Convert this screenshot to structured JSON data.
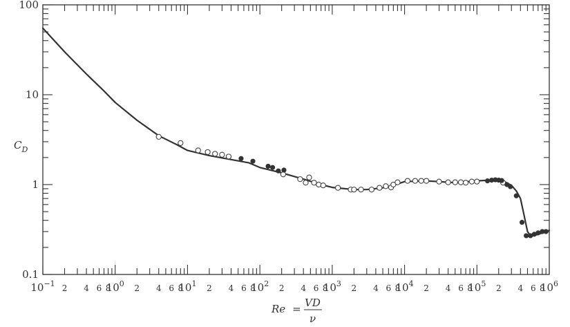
{
  "chart_data": {
    "type": "scatter",
    "xscale": "log",
    "yscale": "log",
    "xlim": [
      0.1,
      1000000
    ],
    "ylim": [
      0.1,
      100
    ],
    "xlabel": {
      "lhs": "Re",
      "eq": "=",
      "num": "VD",
      "den": "ν"
    },
    "ylabel": {
      "main": "C",
      "sub": "D"
    },
    "y_ticks": [
      {
        "value": 100,
        "label": "100"
      },
      {
        "value": 10,
        "label": "10"
      },
      {
        "value": 1,
        "label": "1"
      },
      {
        "value": 0.1,
        "label": "0.1"
      }
    ],
    "x_decades": [
      {
        "value": 0.1,
        "base": "10",
        "exp": "−1"
      },
      {
        "value": 1,
        "base": "10",
        "exp": "0"
      },
      {
        "value": 10,
        "base": "10",
        "exp": "1"
      },
      {
        "value": 100,
        "base": "10",
        "exp": "2"
      },
      {
        "value": 1000,
        "base": "10",
        "exp": "3"
      },
      {
        "value": 10000,
        "base": "10",
        "exp": "4"
      },
      {
        "value": 100000,
        "base": "10",
        "exp": "5"
      },
      {
        "value": 1000000,
        "base": "10",
        "exp": "6"
      }
    ],
    "x_minor_labels": [
      "2",
      "4",
      "6",
      "8"
    ],
    "grid": false,
    "curve": {
      "x": [
        0.1,
        0.2,
        0.4,
        0.7,
        1,
        2,
        4,
        7,
        10,
        20,
        40,
        70,
        100,
        200,
        400,
        700,
        1000,
        2000,
        3000,
        5000,
        7000,
        10000,
        20000,
        50000,
        100000,
        150000,
        200000,
        250000,
        300000,
        350000,
        400000,
        450000,
        500000,
        550000,
        600000,
        700000,
        800000,
        1000000
      ],
      "y": [
        55,
        30,
        17,
        11,
        8.2,
        5.2,
        3.5,
        2.8,
        2.4,
        2.1,
        1.9,
        1.75,
        1.55,
        1.35,
        1.15,
        1.0,
        0.93,
        0.88,
        0.88,
        0.92,
        0.98,
        1.08,
        1.1,
        1.05,
        1.1,
        1.12,
        1.1,
        1.06,
        0.98,
        0.85,
        0.7,
        0.45,
        0.3,
        0.27,
        0.27,
        0.28,
        0.29,
        0.31
      ]
    },
    "points_open": [
      [
        4,
        3.4
      ],
      [
        8,
        2.9
      ],
      [
        14,
        2.4
      ],
      [
        19,
        2.3
      ],
      [
        24,
        2.2
      ],
      [
        30,
        2.15
      ],
      [
        37,
        2.05
      ],
      [
        210,
        1.3
      ],
      [
        360,
        1.15
      ],
      [
        430,
        1.05
      ],
      [
        480,
        1.2
      ],
      [
        560,
        1.05
      ],
      [
        650,
        1.0
      ],
      [
        750,
        0.98
      ],
      [
        1200,
        0.92
      ],
      [
        1800,
        0.88
      ],
      [
        2000,
        0.88
      ],
      [
        2500,
        0.88
      ],
      [
        3500,
        0.88
      ],
      [
        4500,
        0.92
      ],
      [
        5500,
        0.96
      ],
      [
        6500,
        0.93
      ],
      [
        7000,
        1.0
      ],
      [
        8000,
        1.06
      ],
      [
        11000,
        1.1
      ],
      [
        14000,
        1.1
      ],
      [
        17000,
        1.1
      ],
      [
        20000,
        1.1
      ],
      [
        30000,
        1.08
      ],
      [
        40000,
        1.06
      ],
      [
        50000,
        1.06
      ],
      [
        60000,
        1.06
      ],
      [
        70000,
        1.05
      ],
      [
        85000,
        1.08
      ],
      [
        100000,
        1.08
      ],
      [
        230000,
        1.05
      ]
    ],
    "points_filled": [
      [
        55,
        1.95
      ],
      [
        80,
        1.82
      ],
      [
        130,
        1.6
      ],
      [
        150,
        1.55
      ],
      [
        180,
        1.42
      ],
      [
        215,
        1.45
      ],
      [
        140000,
        1.1
      ],
      [
        160000,
        1.12
      ],
      [
        180000,
        1.13
      ],
      [
        200000,
        1.12
      ],
      [
        220000,
        1.11
      ],
      [
        260000,
        1.0
      ],
      [
        290000,
        0.95
      ],
      [
        350000,
        0.75
      ],
      [
        420000,
        0.38
      ],
      [
        480000,
        0.27
      ],
      [
        550000,
        0.27
      ],
      [
        620000,
        0.28
      ],
      [
        700000,
        0.29
      ],
      [
        800000,
        0.3
      ],
      [
        900000,
        0.3
      ]
    ]
  }
}
